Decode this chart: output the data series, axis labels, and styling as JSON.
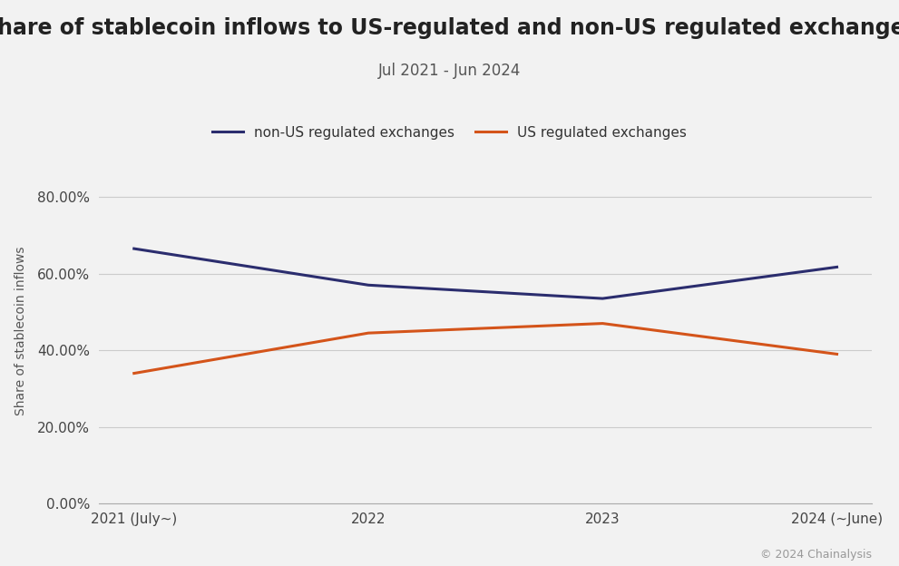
{
  "title": "Share of stablecoin inflows to US-regulated and non-US regulated exchanges",
  "subtitle": "Jul 2021 - Jun 2024",
  "xlabel": "",
  "ylabel": "Share of stablecoin inflows",
  "background_color": "#f2f2f2",
  "plot_background_color": "#f2f2f2",
  "x_labels": [
    "2021 (July~)",
    "2022",
    "2023",
    "2024 (~June)"
  ],
  "x_values": [
    0,
    1,
    2,
    3
  ],
  "non_us_values": [
    0.665,
    0.57,
    0.535,
    0.617
  ],
  "us_values": [
    0.34,
    0.445,
    0.47,
    0.39
  ],
  "non_us_color": "#2b2d6e",
  "us_color": "#d4541a",
  "non_us_label": "non-US regulated exchanges",
  "us_label": "US regulated exchanges",
  "ylim": [
    0.0,
    0.9
  ],
  "yticks": [
    0.0,
    0.2,
    0.4,
    0.6,
    0.8
  ],
  "line_width": 2.2,
  "title_fontsize": 17,
  "subtitle_fontsize": 12,
  "ylabel_fontsize": 10,
  "tick_fontsize": 11,
  "legend_fontsize": 11,
  "copyright_text": "© 2024 Chainalysis",
  "copyright_fontsize": 9,
  "copyright_color": "#999999"
}
